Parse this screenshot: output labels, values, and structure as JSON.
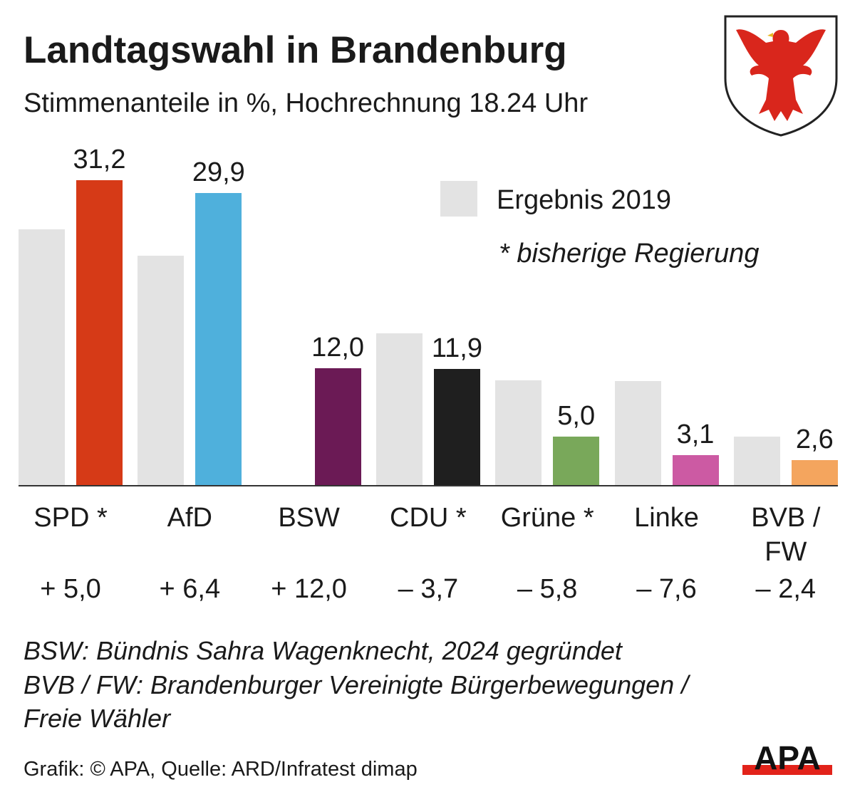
{
  "chart_data": {
    "type": "bar",
    "title": "Landtagswahl in Brandenburg",
    "subtitle": "Stimmenanteile in %, Hochrechnung 18.24 Uhr",
    "categories": [
      "SPD *",
      "AfD",
      "BSW",
      "CDU *",
      "Grüne *",
      "Linke",
      "BVB / FW"
    ],
    "series": [
      {
        "name": "Ergebnis 2019",
        "values": [
          26.2,
          23.5,
          0,
          15.6,
          10.8,
          10.7,
          5.0
        ],
        "color": "#e3e3e3"
      },
      {
        "values": [
          31.2,
          29.9,
          12.0,
          11.9,
          5.0,
          3.1,
          2.6
        ],
        "labels": [
          "31,2",
          "29,9",
          "12,0",
          "11,9",
          "5,0",
          "3,1",
          "2,6"
        ],
        "colors": [
          "#d63a17",
          "#4fb0dc",
          "#6b1a55",
          "#1f1f1f",
          "#79a85a",
          "#cc5aa3",
          "#f4a55e"
        ]
      }
    ],
    "changes": [
      "+ 5,0",
      "+ 6,4",
      "+ 12,0",
      "– 3,7",
      "– 5,8",
      "– 7,6",
      "– 2,4"
    ],
    "ylim": [
      0,
      33
    ],
    "grid": false,
    "legend": {
      "swatch_label": "Ergebnis 2019",
      "note": "* bisherige Regierung",
      "placement": "top-right"
    }
  },
  "notes": [
    "BSW: Bündnis Sahra Wagenknecht, 2024 gegründet",
    "BVB / FW: Brandenburger Vereinigte Bürgerbewegungen /",
    "Freie Wähler"
  ],
  "source": "Grafik: © APA, Quelle: ARD/Infratest dimap",
  "logo": "APA",
  "coat_of_arms": "brandenburg-eagle"
}
